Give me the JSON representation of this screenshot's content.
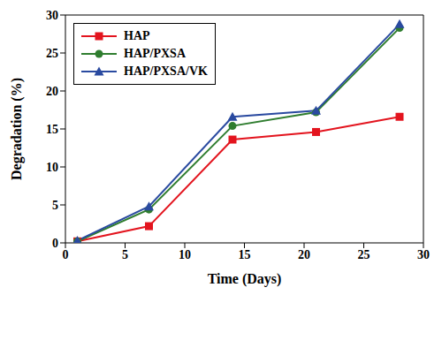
{
  "chart_data": {
    "type": "line",
    "x_label": "Time (Days)",
    "y_label": "Degradation (%)",
    "x": [
      1,
      7,
      14,
      21,
      28
    ],
    "xlim": [
      0,
      30
    ],
    "xticks": [
      0,
      5,
      10,
      15,
      20,
      25,
      30
    ],
    "ylim": [
      0,
      30
    ],
    "yticks": [
      0,
      5,
      10,
      15,
      20,
      25,
      30
    ],
    "grid": false,
    "legend": "upper left",
    "series": [
      {
        "name": "HAP",
        "color": "#e3141e",
        "marker": "square",
        "values": [
          0.2,
          2.2,
          13.6,
          14.6,
          16.6
        ]
      },
      {
        "name": "HAP/PXSA",
        "color": "#2f7d2f",
        "marker": "circle",
        "values": [
          0.2,
          4.4,
          15.4,
          17.2,
          28.3
        ]
      },
      {
        "name": "HAP/PXSA/VK",
        "color": "#2a4aa0",
        "marker": "triangle",
        "values": [
          0.3,
          4.8,
          16.6,
          17.4,
          28.8
        ]
      }
    ]
  }
}
